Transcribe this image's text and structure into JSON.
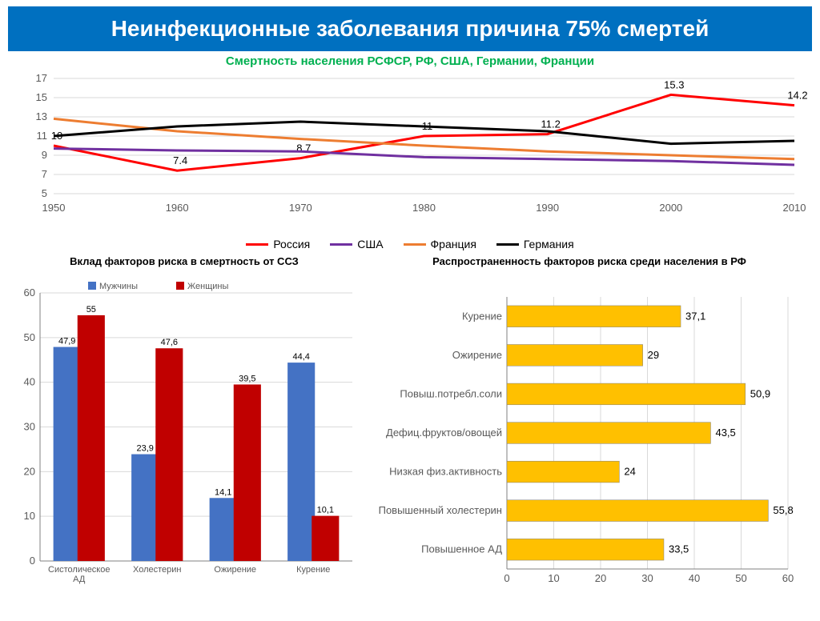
{
  "title": "Неинфекционные заболевания причина 75% смертей",
  "line_chart": {
    "type": "line",
    "subtitle": "Смертность населения  РСФСР, РФ, США, Германии, Франции",
    "years": [
      1950,
      1960,
      1970,
      1980,
      1990,
      2000,
      2010
    ],
    "ylim": [
      5,
      17
    ],
    "ytick_step": 2,
    "series": [
      {
        "name": "Россия",
        "color": "#ff0000",
        "values": [
          10,
          7.4,
          8.7,
          11,
          11.2,
          15.3,
          14.2
        ],
        "show_labels": true
      },
      {
        "name": "США",
        "color": "#7030a0",
        "values": [
          9.7,
          9.5,
          9.4,
          8.8,
          8.6,
          8.4,
          8.0
        ],
        "show_labels": false
      },
      {
        "name": "Франция",
        "color": "#ed7d31",
        "values": [
          12.8,
          11.5,
          10.7,
          10.0,
          9.4,
          9.0,
          8.6
        ],
        "show_labels": false
      },
      {
        "name": "Германия",
        "color": "#000000",
        "values": [
          11.0,
          12.0,
          12.5,
          12.0,
          11.5,
          10.2,
          10.5
        ],
        "show_labels": false
      }
    ],
    "grid_color": "#d9d9d9",
    "background_color": "#ffffff",
    "line_width": 3
  },
  "bar_chart": {
    "type": "grouped-bar",
    "title": "Вклад факторов риска в смертность от ССЗ",
    "categories": [
      "Систолическое\nАД",
      "Холестерин",
      "Ожирение",
      "Курение"
    ],
    "series": [
      {
        "name": "Мужчины",
        "color": "#4472c4",
        "values": [
          47.9,
          23.9,
          14.1,
          44.4
        ]
      },
      {
        "name": "Женщины",
        "color": "#c00000",
        "values": [
          55,
          47.6,
          39.5,
          10.1
        ]
      }
    ],
    "ylim": [
      0,
      60
    ],
    "ytick_step": 10,
    "grid_color": "#d9d9d9",
    "background_color": "#ffffff",
    "bar_width": 0.35
  },
  "hbar_chart": {
    "type": "horizontal-bar",
    "title": "Распространенность факторов риска среди населения в РФ",
    "categories": [
      "Курение",
      "Ожирение",
      "Повыш.потребл.соли",
      "Дефиц.фруктов/овощей",
      "Низкая физ.активность",
      "Повышенный холестерин",
      "Повышенное АД"
    ],
    "values": [
      37.1,
      29,
      50.9,
      43.5,
      24,
      55.8,
      33.5
    ],
    "bar_color": "#ffc000",
    "bar_border": "#7f7f7f",
    "xlim": [
      0,
      60
    ],
    "xtick_step": 10,
    "grid_color": "#d9d9d9",
    "background_color": "#ffffff"
  }
}
